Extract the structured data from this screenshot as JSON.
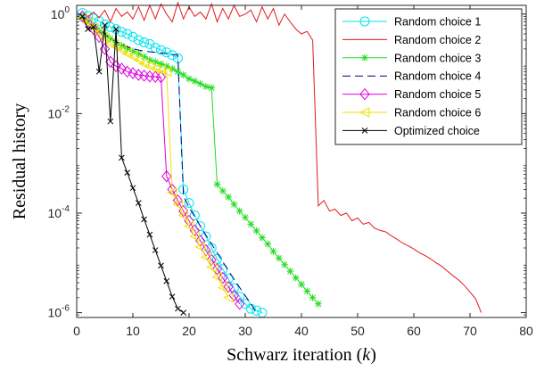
{
  "chart_data": {
    "type": "line",
    "xlabel": "Schwarz iteration (k)",
    "ylabel": "Residual history",
    "xlim": [
      0,
      80
    ],
    "ylim": [
      8e-07,
      1.5
    ],
    "yscale": "log",
    "x_ticks": [
      0,
      10,
      20,
      30,
      40,
      50,
      60,
      70,
      80
    ],
    "y_ticks": [
      {
        "value": 1e-06,
        "base": "10",
        "exp": "-6"
      },
      {
        "value": 0.0001,
        "base": "10",
        "exp": "-4"
      },
      {
        "value": 0.01,
        "base": "10",
        "exp": "-2"
      },
      {
        "value": 1,
        "base": "10",
        "exp": "0"
      }
    ],
    "legend_position": "top-right",
    "series": [
      {
        "name": "Random choice 1",
        "color": "#00e5ee",
        "marker": "circle",
        "dash": "",
        "x": [
          1,
          2,
          3,
          4,
          5,
          6,
          7,
          8,
          9,
          10,
          11,
          12,
          13,
          14,
          15,
          16,
          17,
          18,
          19,
          20,
          21,
          22,
          23,
          24,
          25,
          26,
          27,
          28,
          29,
          30,
          31,
          32,
          33
        ],
        "y": [
          1.05,
          0.92,
          0.82,
          0.72,
          0.62,
          0.55,
          0.5,
          0.44,
          0.4,
          0.35,
          0.3,
          0.27,
          0.25,
          0.21,
          0.19,
          0.17,
          0.15,
          0.13,
          0.0003,
          0.00016,
          9e-05,
          5.5e-05,
          3.4e-05,
          2e-05,
          1.2e-05,
          7.5e-06,
          4.8e-06,
          3.1e-06,
          2.1e-06,
          1.5e-06,
          1.2e-06,
          1.1e-06,
          1e-06
        ]
      },
      {
        "name": "Random choice 2",
        "color": "#e31a1c",
        "marker": "none",
        "dash": "",
        "x": [
          1,
          2,
          3,
          4,
          5,
          6,
          7,
          8,
          9,
          10,
          11,
          12,
          13,
          14,
          15,
          16,
          17,
          18,
          19,
          20,
          21,
          22,
          23,
          24,
          25,
          26,
          27,
          28,
          29,
          30,
          31,
          32,
          33,
          34,
          35,
          36,
          37,
          38,
          39,
          40,
          41,
          42,
          43,
          44,
          45,
          46,
          47,
          48,
          49,
          50,
          51,
          52,
          53,
          54,
          55,
          56,
          57,
          58,
          59,
          60,
          61,
          62,
          63,
          64,
          65,
          66,
          67,
          68,
          69,
          70,
          71,
          72
        ],
        "y": [
          0.8,
          0.9,
          1.1,
          0.85,
          1.2,
          0.7,
          1.3,
          0.9,
          1.1,
          0.8,
          1.4,
          0.75,
          1.5,
          0.8,
          1.6,
          1.0,
          0.7,
          1.7,
          0.8,
          1.4,
          0.9,
          1.1,
          0.8,
          1.6,
          0.7,
          1.3,
          0.8,
          1.5,
          0.9,
          1.0,
          1.2,
          0.7,
          1.4,
          0.8,
          1.3,
          0.6,
          1.0,
          0.7,
          0.5,
          0.4,
          0.45,
          0.3,
          0.00014,
          0.00018,
          0.00011,
          0.00012,
          9e-05,
          0.0001,
          7e-05,
          8e-05,
          6e-05,
          6.5e-05,
          5e-05,
          4.5e-05,
          4.2e-05,
          3.5e-05,
          3e-05,
          2.5e-05,
          2.2e-05,
          1.9e-05,
          1.6e-05,
          1.4e-05,
          1.2e-05,
          1e-05,
          8.5e-06,
          6.8e-06,
          5.5e-06,
          4.5e-06,
          3.5e-06,
          2.6e-06,
          1.9e-06,
          1e-06
        ]
      },
      {
        "name": "Random choice 3",
        "color": "#22dd22",
        "marker": "star",
        "dash": "",
        "x": [
          1,
          2,
          3,
          4,
          5,
          6,
          7,
          8,
          9,
          10,
          11,
          12,
          13,
          14,
          15,
          16,
          17,
          18,
          19,
          20,
          21,
          22,
          23,
          24,
          25,
          26,
          27,
          28,
          29,
          30,
          31,
          32,
          33,
          34,
          35,
          36,
          37,
          38,
          39,
          40,
          41,
          42,
          43
        ],
        "y": [
          0.85,
          0.7,
          0.55,
          0.46,
          0.38,
          0.32,
          0.27,
          0.23,
          0.2,
          0.18,
          0.16,
          0.14,
          0.12,
          0.11,
          0.1,
          0.09,
          0.08,
          0.07,
          0.06,
          0.05,
          0.045,
          0.04,
          0.035,
          0.033,
          0.00038,
          0.00028,
          0.00021,
          0.00015,
          0.00011,
          8.2e-05,
          6e-05,
          4.4e-05,
          3.2e-05,
          2.4e-05,
          1.7e-05,
          1.25e-05,
          9.2e-06,
          6.8e-06,
          5e-06,
          3.7e-06,
          2.7e-06,
          2e-06,
          1.5e-06
        ]
      },
      {
        "name": "Random choice 4",
        "color": "#00008b",
        "marker": "none",
        "dash": "9,5",
        "x": [
          1,
          2,
          3,
          4,
          5,
          6,
          7,
          8,
          9,
          10,
          11,
          12,
          13,
          14,
          15,
          16,
          17,
          18,
          19,
          20,
          21,
          22,
          23,
          24,
          25,
          26,
          27,
          28,
          29,
          30,
          31,
          32
        ],
        "y": [
          0.9,
          0.75,
          0.62,
          0.5,
          0.4,
          0.33,
          0.28,
          0.25,
          0.22,
          0.2,
          0.19,
          0.18,
          0.175,
          0.17,
          0.165,
          0.16,
          0.155,
          0.15,
          0.00022,
          0.00013,
          8.5e-05,
          5.5e-05,
          3.6e-05,
          2.4e-05,
          1.6e-05,
          1.05e-05,
          7e-06,
          4.7e-06,
          3.2e-06,
          2.2e-06,
          1.5e-06,
          1e-06
        ]
      },
      {
        "name": "Random choice 5",
        "color": "#e000e0",
        "marker": "diamond",
        "dash": "",
        "x": [
          1,
          2,
          3,
          4,
          5,
          6,
          7,
          8,
          9,
          10,
          11,
          12,
          13,
          14,
          15,
          16,
          17,
          18,
          19,
          20,
          21,
          22,
          23,
          24,
          25,
          26,
          27,
          28,
          29
        ],
        "y": [
          0.9,
          0.7,
          0.5,
          0.35,
          0.2,
          0.11,
          0.09,
          0.08,
          0.07,
          0.065,
          0.06,
          0.058,
          0.056,
          0.055,
          0.054,
          0.00055,
          0.0003,
          0.00018,
          0.00011,
          7e-05,
          4.5e-05,
          2.8e-05,
          1.8e-05,
          1.15e-05,
          7.5e-06,
          5e-06,
          3.3e-06,
          2.2e-06,
          1.5e-06
        ]
      },
      {
        "name": "Random choice 6",
        "color": "#f0e000",
        "marker": "triangle-left",
        "dash": "",
        "x": [
          1,
          2,
          3,
          4,
          5,
          6,
          7,
          8,
          9,
          10,
          11,
          12,
          13,
          14,
          15,
          16,
          17,
          18,
          19,
          20,
          21,
          22,
          23,
          24,
          25,
          26,
          27
        ],
        "y": [
          0.85,
          0.68,
          0.54,
          0.42,
          0.33,
          0.26,
          0.22,
          0.19,
          0.16,
          0.14,
          0.12,
          0.1,
          0.09,
          0.08,
          0.075,
          0.07,
          0.00026,
          0.00015,
          9e-05,
          5.5e-05,
          3.4e-05,
          2.1e-05,
          1.3e-05,
          8.2e-06,
          5.2e-06,
          3.2e-06,
          2e-06
        ]
      },
      {
        "name": "Optimized choice",
        "color": "#000000",
        "marker": "x",
        "dash": "",
        "x": [
          1,
          2,
          3,
          4,
          5,
          6,
          7,
          8,
          9,
          10,
          11,
          12,
          13,
          14,
          15,
          16,
          17,
          18,
          19
        ],
        "y": [
          0.9,
          0.5,
          0.55,
          0.07,
          0.6,
          0.007,
          0.5,
          0.0013,
          0.00065,
          0.00032,
          0.00016,
          7.5e-05,
          3.7e-05,
          1.8e-05,
          8.8e-06,
          4.3e-06,
          2.1e-06,
          1.2e-06,
          1e-06
        ]
      }
    ]
  }
}
